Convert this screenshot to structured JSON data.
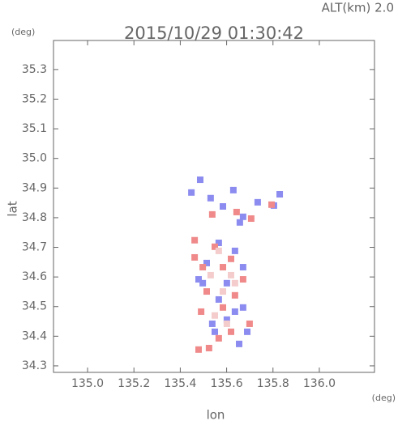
{
  "chart_data": {
    "type": "scatter",
    "title": "2015/10/29 01:30:42",
    "annotation": "ALT(km) 2.0",
    "y_unit": "(deg)",
    "x_unit": "(deg)",
    "xlabel": "lon",
    "ylabel": "lat",
    "xlim": [
      134.853,
      136.238
    ],
    "ylim": [
      34.278,
      35.398
    ],
    "xticks": [
      {
        "value": 135.0,
        "label": "135.0"
      },
      135.2,
      135.4,
      135.6,
      135.8,
      {
        "value": 136.0,
        "label": "136.0"
      }
    ],
    "yticks": [
      34.3,
      34.4,
      34.5,
      34.6,
      34.7,
      34.8,
      34.9,
      {
        "value": 35.0,
        "label": "35.0"
      },
      35.1,
      35.2,
      35.3
    ],
    "series": [
      {
        "color": "#8c8cf0",
        "x": [
          135.486,
          135.448,
          135.531,
          135.584,
          135.671,
          135.657,
          135.734,
          135.829,
          135.804,
          135.629,
          135.566,
          135.636,
          135.514,
          135.671,
          135.601,
          135.479,
          135.566,
          135.636,
          135.671,
          135.538,
          135.689,
          135.601,
          135.654,
          135.549,
          135.497
        ],
        "y": [
          34.928,
          34.885,
          34.866,
          34.838,
          34.803,
          34.784,
          34.852,
          34.879,
          34.841,
          34.893,
          34.715,
          34.688,
          34.647,
          34.633,
          34.579,
          34.592,
          34.524,
          34.483,
          34.497,
          34.442,
          34.415,
          34.456,
          34.374,
          34.415,
          34.579
        ]
      },
      {
        "color": "#f08a8a",
        "x": [
          135.538,
          135.643,
          135.706,
          135.794,
          135.462,
          135.549,
          135.619,
          135.497,
          135.671,
          135.584,
          135.514,
          135.636,
          135.584,
          135.49,
          135.699,
          135.619,
          135.524,
          135.479,
          135.566,
          135.462
        ],
        "y": [
          34.811,
          34.819,
          34.797,
          34.844,
          34.724,
          34.702,
          34.661,
          34.633,
          34.592,
          34.633,
          34.551,
          34.538,
          34.497,
          34.483,
          34.442,
          34.415,
          34.36,
          34.355,
          34.393,
          34.666
        ]
      },
      {
        "color": "#f4cccc",
        "x": [
          135.566,
          135.531,
          135.619,
          135.584,
          135.601,
          135.549,
          135.636
        ],
        "y": [
          34.688,
          34.606,
          34.606,
          34.551,
          34.442,
          34.47,
          34.579
        ]
      }
    ]
  }
}
